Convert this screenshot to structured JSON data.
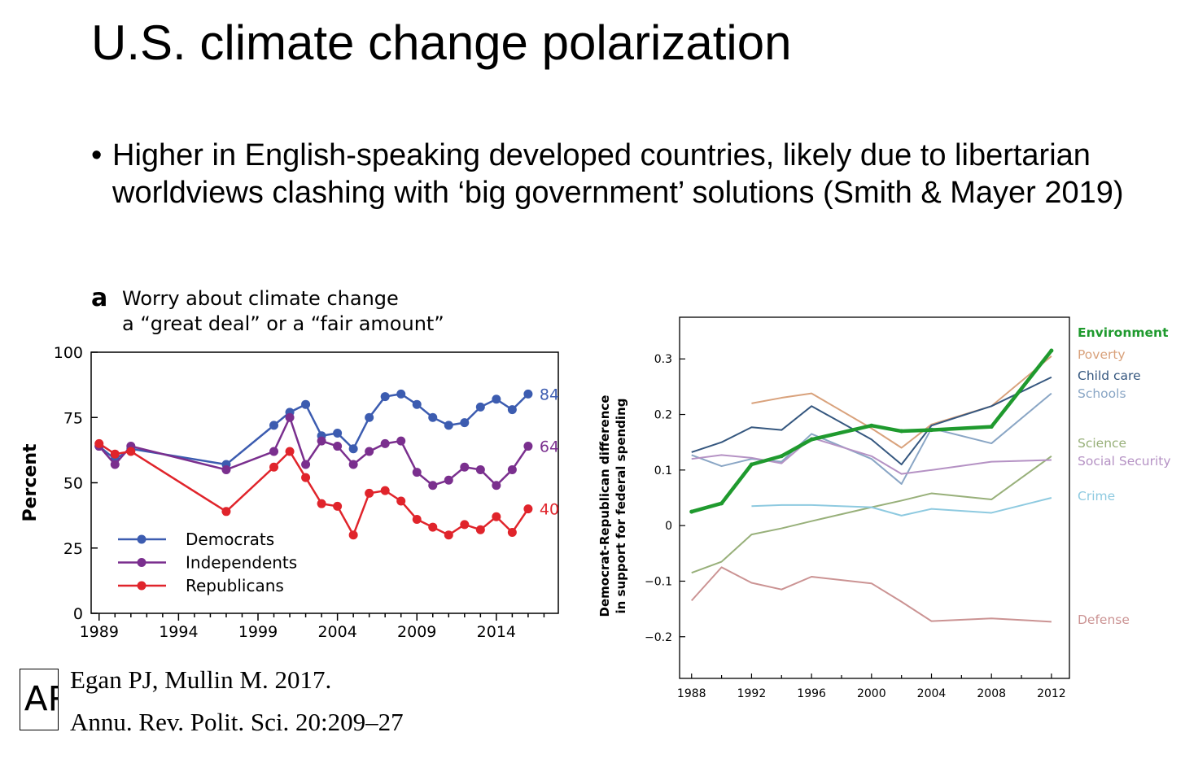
{
  "slide": {
    "title": "U.S. climate change polarization",
    "bullet": "Higher in English-speaking developed countries, likely due to libertarian worldviews clashing with ‘big government’ solutions (Smith & Mayer 2019)",
    "bullet_symbol": "•"
  },
  "citation": {
    "logo": "AR",
    "line1": "Egan PJ, Mullin M. 2017.",
    "line2": "Annu. Rev. Polit. Sci. 20:209–27"
  },
  "chart_data": [
    {
      "type": "line",
      "panel_label": "a",
      "title": [
        "Worry about climate change",
        "a “great deal” or a “fair amount”"
      ],
      "ylabel": "Percent",
      "xlabel": "",
      "xlim": [
        1988.5,
        2017.9
      ],
      "ylim": [
        0,
        100
      ],
      "xticks": [
        1989,
        1994,
        1999,
        2004,
        2009,
        2014
      ],
      "yticks": [
        0,
        25,
        50,
        75,
        100
      ],
      "legend_position": "bottom-left",
      "series": [
        {
          "name": "Democrats",
          "color": "#3c5cb0",
          "end_label": "84",
          "x": [
            1989,
            1990,
            1991,
            1997,
            2000,
            2001,
            2002,
            2003,
            2004,
            2005,
            2006,
            2007,
            2008,
            2009,
            2010,
            2011,
            2012,
            2013,
            2014,
            2015,
            2016,
            2017
          ],
          "y": [
            64,
            59,
            63,
            57,
            72,
            77,
            80,
            68,
            69,
            63,
            75,
            83,
            84,
            80,
            75,
            72,
            73,
            79,
            82,
            78,
            84,
            84
          ]
        },
        {
          "name": "Independents",
          "color": "#7a2f8e",
          "end_label": "64",
          "x": [
            1989,
            1990,
            1991,
            1997,
            2000,
            2001,
            2002,
            2003,
            2004,
            2005,
            2006,
            2007,
            2008,
            2009,
            2010,
            2011,
            2012,
            2013,
            2014,
            2015,
            2016,
            2017
          ],
          "y": [
            64,
            57,
            64,
            55,
            62,
            75,
            57,
            66,
            64,
            57,
            62,
            65,
            66,
            54,
            49,
            51,
            56,
            55,
            49,
            55,
            64,
            64
          ]
        },
        {
          "name": "Republicans",
          "color": "#e0242b",
          "end_label": "40",
          "x": [
            1989,
            1990,
            1991,
            1997,
            2000,
            2001,
            2002,
            2003,
            2004,
            2005,
            2006,
            2007,
            2008,
            2009,
            2010,
            2011,
            2012,
            2013,
            2014,
            2015,
            2016,
            2017
          ],
          "y": [
            65,
            61,
            62,
            39,
            56,
            62,
            52,
            42,
            41,
            30,
            46,
            47,
            43,
            36,
            33,
            30,
            34,
            32,
            37,
            31,
            40,
            40
          ]
        }
      ]
    },
    {
      "type": "line",
      "ylabel": [
        "Democrat-Republican difference",
        "in support for federal spending"
      ],
      "xlabel": "",
      "xlim": [
        1987.2,
        2013.2
      ],
      "ylim": [
        -0.275,
        0.375
      ],
      "xticks": [
        1988,
        1992,
        1996,
        2000,
        2004,
        2008,
        2012
      ],
      "yticks": [
        -0.2,
        -0.1,
        0,
        0.1,
        0.2,
        0.3
      ],
      "ytick_labels": [
        "−0.2",
        "−0.1",
        "0",
        "0.1",
        "0.2",
        "0.3"
      ],
      "series": [
        {
          "name": "Environment",
          "color": "#1f9a2e",
          "bold": true,
          "x": [
            1988,
            1990,
            1992,
            1994,
            1996,
            2000,
            2002,
            2004,
            2008,
            2012
          ],
          "y": [
            0.025,
            0.04,
            0.11,
            0.125,
            0.155,
            0.18,
            0.17,
            0.172,
            0.178,
            0.315
          ]
        },
        {
          "name": "Poverty",
          "color": "#d9a27c",
          "x": [
            1992,
            1994,
            1996,
            2000,
            2002,
            2004,
            2008,
            2012
          ],
          "y": [
            0.22,
            0.23,
            0.238,
            0.175,
            0.14,
            0.182,
            0.215,
            0.305
          ]
        },
        {
          "name": "Child care",
          "color": "#35577f",
          "x": [
            1988,
            1990,
            1992,
            1994,
            1996,
            2000,
            2002,
            2004,
            2008,
            2012
          ],
          "y": [
            0.132,
            0.15,
            0.177,
            0.172,
            0.215,
            0.155,
            0.11,
            0.18,
            0.215,
            0.267
          ]
        },
        {
          "name": "Schools",
          "color": "#8aa6c5",
          "x": [
            1988,
            1990,
            1992,
            1994,
            1996,
            2000,
            2002,
            2004,
            2008,
            2012
          ],
          "y": [
            0.127,
            0.107,
            0.12,
            0.115,
            0.165,
            0.12,
            0.075,
            0.175,
            0.148,
            0.238
          ]
        },
        {
          "name": "Science",
          "color": "#98b07a",
          "x": [
            1988,
            1990,
            1992,
            1994,
            1996,
            2000,
            2002,
            2004,
            2008,
            2012
          ],
          "y": [
            -0.085,
            -0.065,
            -0.016,
            -0.005,
            0.008,
            0.033,
            0.045,
            0.058,
            0.047,
            0.125
          ]
        },
        {
          "name": "Social Security",
          "color": "#b592c4",
          "x": [
            1988,
            1990,
            1992,
            1994,
            1996,
            2000,
            2002,
            2004,
            2008,
            2012
          ],
          "y": [
            0.12,
            0.127,
            0.122,
            0.112,
            0.158,
            0.125,
            0.093,
            0.1,
            0.115,
            0.118
          ]
        },
        {
          "name": "Crime",
          "color": "#8ecae0",
          "x": [
            1992,
            1994,
            1996,
            2000,
            2002,
            2004,
            2008,
            2012
          ],
          "y": [
            0.035,
            0.037,
            0.037,
            0.033,
            0.018,
            0.03,
            0.023,
            0.05
          ]
        },
        {
          "name": "Defense",
          "color": "#cb9393",
          "x": [
            1988,
            1990,
            1992,
            1994,
            1996,
            2000,
            2002,
            2004,
            2008,
            2012
          ],
          "y": [
            -0.135,
            -0.075,
            -0.103,
            -0.115,
            -0.092,
            -0.104,
            -0.137,
            -0.172,
            -0.167,
            -0.173
          ]
        }
      ]
    }
  ]
}
